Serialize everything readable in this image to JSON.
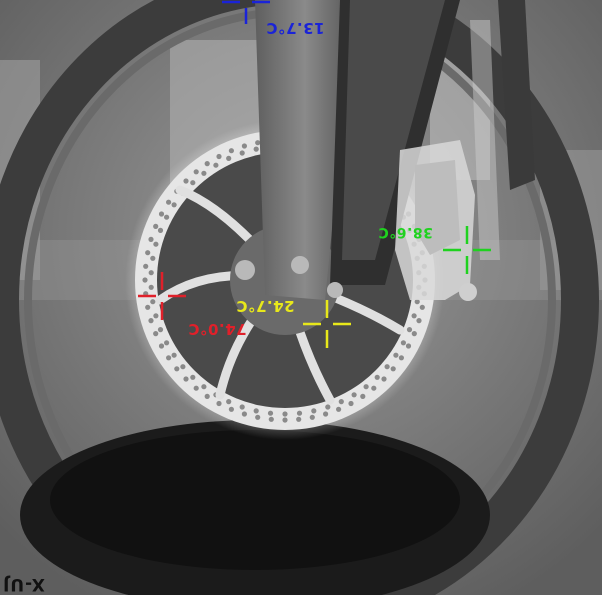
{
  "image": {
    "kind": "thermal camera frame (grayscale, shown upside-down)",
    "subject": "bicycle front wheel disc brake rotor and caliper"
  },
  "markers": [
    {
      "id": "blue",
      "reading": "13.7°C",
      "color": "#1a23d8"
    },
    {
      "id": "green",
      "reading": "38.6°C",
      "color": "#1fd21f"
    },
    {
      "id": "yellow",
      "reading": "24.7°C",
      "color": "#e8e81a"
    },
    {
      "id": "red",
      "reading": "74.0°C",
      "color": "#e0202a"
    }
  ],
  "corner_label": "X-UJ"
}
